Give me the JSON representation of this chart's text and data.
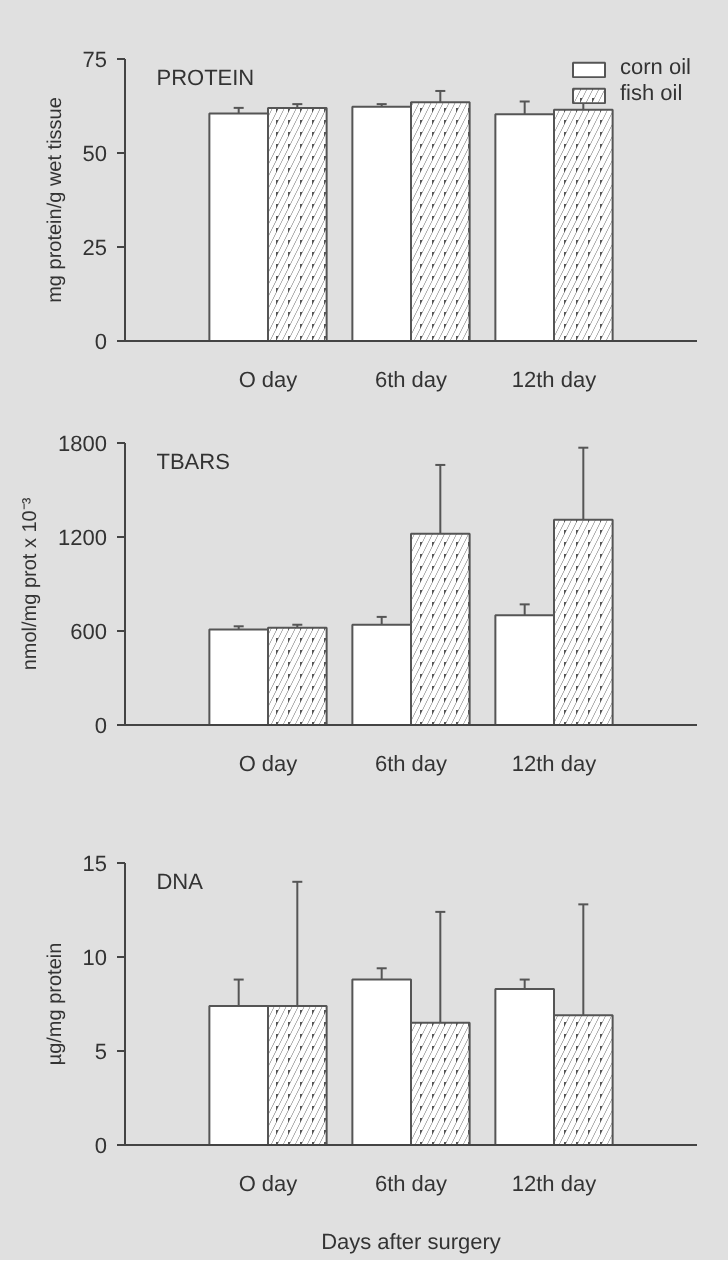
{
  "chart_data": [
    {
      "type": "bar",
      "title": "PROTEIN",
      "ylabel": "mg protein/g wet tissue",
      "categories": [
        "O day",
        "6th day",
        "12th day"
      ],
      "ylim": [
        0,
        75
      ],
      "yticks": [
        0,
        25,
        50,
        75
      ],
      "grid": false,
      "legend": "top right",
      "series": [
        {
          "name": "corn oil",
          "color": "#ffffff",
          "values": [
            60.5,
            62.3,
            60.3
          ],
          "errors": [
            [
              60.5,
              62
            ],
            [
              62.3,
              63
            ],
            [
              60.3,
              63.7
            ]
          ]
        },
        {
          "name": "fish oil",
          "color": "#555555",
          "values": [
            62,
            63.5,
            61.5
          ],
          "errors": [
            [
              62,
              63
            ],
            [
              63.5,
              66.5
            ],
            [
              61.5,
              63.3
            ]
          ]
        }
      ]
    },
    {
      "type": "bar",
      "title": "TBARS",
      "ylabel": "nmol/mg prot x 10⁻³",
      "categories": [
        "O day",
        "6th day",
        "12th day"
      ],
      "ylim": [
        0,
        1800
      ],
      "yticks": [
        0,
        600,
        1200,
        1800
      ],
      "grid": false,
      "series": [
        {
          "color": "#ffffff",
          "values": [
            610,
            640,
            700
          ],
          "errors": [
            [
              610,
              630
            ],
            [
              640,
              690
            ],
            [
              700,
              770
            ]
          ]
        },
        {
          "color": "#555555",
          "values": [
            620,
            1220,
            1310
          ],
          "errors": [
            [
              620,
              640
            ],
            [
              1220,
              1660
            ],
            [
              1310,
              1770
            ]
          ]
        }
      ]
    },
    {
      "type": "bar",
      "title": "DNA",
      "ylabel": "µg/mg protein",
      "xlabel": "Days after surgery",
      "categories": [
        "O day",
        "6th day",
        "12th day"
      ],
      "ylim": [
        0,
        15
      ],
      "yticks": [
        0,
        5,
        10,
        15
      ],
      "grid": false,
      "series": [
        {
          "color": "#ffffff",
          "values": [
            7.4,
            8.8,
            8.3
          ],
          "errors": [
            [
              7.4,
              8.8
            ],
            [
              8.8,
              9.4
            ],
            [
              8.3,
              8.8
            ]
          ]
        },
        {
          "color": "#555555",
          "values": [
            7.4,
            6.5,
            6.9
          ],
          "errors": [
            [
              7.4,
              14.0
            ],
            [
              6.5,
              12.4
            ],
            [
              6.9,
              12.8
            ]
          ]
        }
      ]
    }
  ]
}
